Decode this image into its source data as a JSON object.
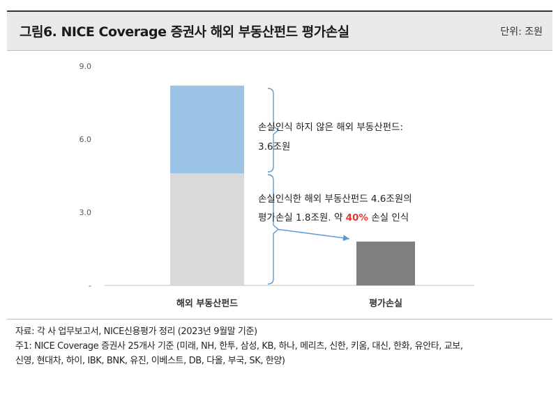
{
  "header": {
    "title": "그림6. NICE Coverage 증권사 해외 부동산펀드 평가손실",
    "unit": "단위: 조원"
  },
  "colors": {
    "unrecognized": "#9dc3e6",
    "recognized": "#d9d9d9",
    "valuation_loss": "#7f7f7f",
    "bracket": "#5b9bd5",
    "highlight": "#e8382f"
  },
  "chart_data": {
    "type": "bar",
    "categories": [
      "해외 부동산펀드",
      "평가손실"
    ],
    "series": [
      {
        "values": [
          4.6,
          0
        ]
      },
      {
        "values": [
          3.6,
          0
        ]
      },
      {
        "values": [
          0,
          1.8
        ]
      }
    ],
    "stacked": true,
    "ylim": [
      0,
      9.0
    ],
    "yticks": [
      "-",
      "3.0",
      "6.0",
      "9.0"
    ],
    "annotations": {
      "upper": {
        "line1": "손실인식 하지 않은 해외 부동산펀드:",
        "line2": "3.6조원"
      },
      "lower": {
        "line1": "손실인식한 해외 부동산펀드 4.6조원의",
        "line2_pre": "평가손실 1.8조원. 약 ",
        "line2_highlight": "40%",
        "line2_post": " 손실 인식"
      }
    }
  },
  "footer": {
    "source": "자료: 각 사 업무보고서, NICE신용평가 정리 (2023년 9월말 기준)",
    "note1": "주1: NICE Coverage 증권사 25개사 기준 (미래, NH, 한투, 삼성, KB, 하나, 메리츠, 신한, 키움, 대신, 한화, 유안타, 교보,",
    "note2": "신영, 현대차, 하이, IBK, BNK, 유진, 이베스트, DB, 다올, 부국, SK, 한양)"
  }
}
